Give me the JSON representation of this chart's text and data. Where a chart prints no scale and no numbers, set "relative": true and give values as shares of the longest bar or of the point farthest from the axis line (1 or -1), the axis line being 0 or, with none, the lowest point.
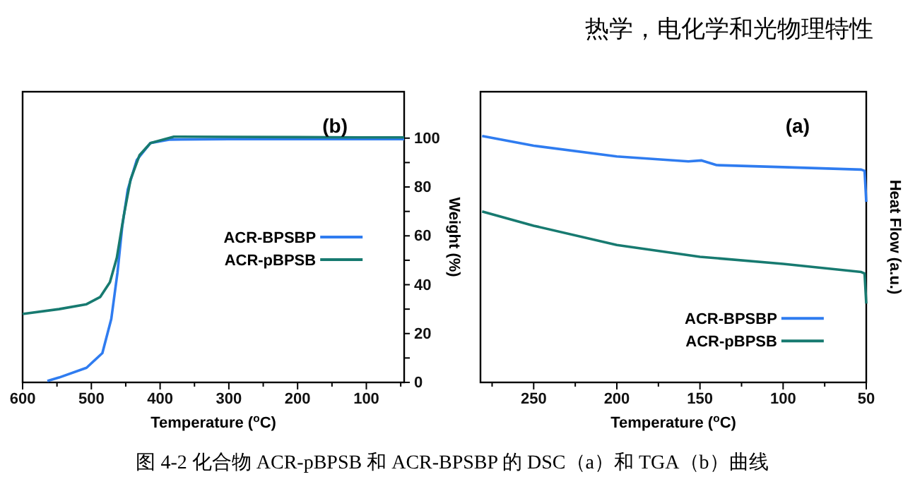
{
  "chart_data": [
    {
      "type": "line",
      "xlabel": "Temperature ($^{o}$C)",
      "ylabel": "Weight (%)",
      "xlim": [
        600,
        45
      ],
      "ylim": [
        0,
        119
      ],
      "xticks": [
        600,
        {
          "value": 550,
          "label": null
        },
        500,
        {
          "value": 450,
          "label": null
        },
        400,
        {
          "value": 350,
          "label": null
        },
        300,
        {
          "value": 250,
          "label": null
        },
        200,
        {
          "value": 150,
          "label": null
        },
        100,
        {
          "value": 50,
          "label": null
        }
      ],
      "yticks": [
        0,
        {
          "value": 10,
          "label": null
        },
        20,
        {
          "value": 30,
          "label": null
        },
        40,
        {
          "value": 50,
          "label": null
        },
        60,
        {
          "value": 70,
          "label": null
        },
        80,
        {
          "value": 90,
          "label": null
        },
        100
      ],
      "legend": "center",
      "grid": false,
      "series": [
        {
          "name": "ACR-BPSBP",
          "color": "#2f7cf0",
          "x": [
            564,
            547,
            507,
            484,
            471,
            462,
            455,
            447,
            434,
            414,
            387,
            300,
            200,
            100,
            45
          ],
          "values": [
            0.6,
            2,
            6,
            12,
            26,
            45,
            64,
            79,
            91,
            98,
            99.4,
            99.6,
            99.6,
            99.6,
            99.6
          ]
        },
        {
          "name": "ACR-pBPSB",
          "color": "#177a70",
          "x": [
            600,
            547,
            507,
            487,
            473,
            463,
            453,
            443,
            430,
            414,
            380,
            300,
            200,
            100,
            45
          ],
          "values": [
            28,
            30,
            32,
            35,
            41,
            51,
            68,
            83,
            93,
            98,
            100.6,
            100.5,
            100.4,
            100.3,
            100.3
          ]
        }
      ],
      "annotations": [
        "(b)",
        "热学，电化学和光物理特性"
      ]
    },
    {
      "type": "line",
      "relative": true,
      "xlabel": "Temperature ($^{o}$C)",
      "ylabel": "Heat Flow (a.u.)",
      "xlim": [
        282,
        50
      ],
      "xticks": [
        {
          "value": 275,
          "label": null
        },
        250,
        {
          "value": 225,
          "label": null
        },
        200,
        {
          "value": 175,
          "label": null
        },
        150,
        {
          "value": 125,
          "label": null
        },
        100,
        {
          "value": 75,
          "label": null
        },
        50
      ],
      "legend": "bottom right",
      "grid": false,
      "series": [
        {
          "name": "ACR-BPSBP",
          "color": "#2f7cf0",
          "x": [
            281,
            250,
            200,
            157,
            149,
            140,
            100,
            53,
            51,
            50
          ],
          "values": [
            1.0,
            0.961,
            0.917,
            0.897,
            0.901,
            0.882,
            0.874,
            0.864,
            0.859,
            0.733
          ]
        },
        {
          "name": "ACR-pBPSB",
          "color": "#177a70",
          "x": [
            281,
            250,
            200,
            150,
            100,
            53,
            51,
            50
          ],
          "values": [
            0.694,
            0.636,
            0.558,
            0.51,
            0.481,
            0.448,
            0.442,
            0.32
          ]
        }
      ],
      "annotations": [
        "(a)",
        "图 4-2 化合物 ACR-pBPSB 和 ACR-BPSBP 的 DSC（a）和 TGA（b）曲线"
      ]
    }
  ]
}
